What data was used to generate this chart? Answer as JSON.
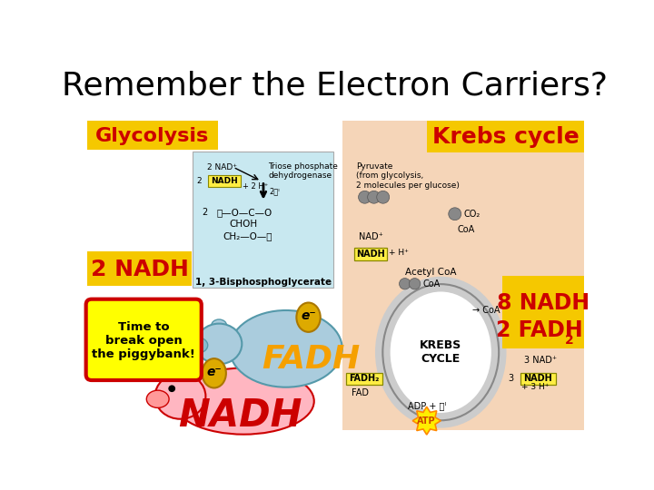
{
  "title": "Remember the Electron Carriers?",
  "title_fontsize": 26,
  "title_color": "#000000",
  "title_family": "sans-serif",
  "bg_color": "#ffffff",
  "glycolysis_label": "Glycolysis",
  "glycolysis_bg": "#f5c800",
  "glycolysis_text_color": "#cc0000",
  "glycolysis_fontsize": 16,
  "krebs_label": "Krebs cycle",
  "krebs_bg": "#f5c800",
  "krebs_text_color": "#cc0000",
  "krebs_fontsize": 18,
  "nadh_2_label": "2 NADH",
  "nadh_2_bg": "#f5c800",
  "nadh_2_text_color": "#cc0000",
  "nadh_2_fontsize": 18,
  "nadh_8_line1": "8 NADH",
  "nadh_8_line2": "2 FADH",
  "nadh_8_sub": "2",
  "nadh_8_bg": "#f5c800",
  "nadh_8_text_color": "#cc0000",
  "nadh_8_fontsize": 17,
  "piggybank_label": "Time to\nbreak open\nthe piggybank!",
  "piggybank_bg": "#ffff00",
  "piggybank_border": "#cc0000",
  "piggybank_fontsize": 9.5,
  "fadh_label": "FADH",
  "fadh_color": "#f5a000",
  "fadh_fontsize": 26,
  "nadh_big_label": "NADH",
  "nadh_big_color": "#cc0000",
  "nadh_big_fontsize": 30,
  "left_diagram_bg": "#c8e8f0",
  "left_diagram_border": "#aaaaaa",
  "right_diagram_bg": "#f5d5b8",
  "nadh_box_bg": "#ffee44",
  "nadh_box_border": "#888800",
  "fadh2_box_bg": "#ffee44",
  "fadh2_box_border": "#888800",
  "krebs_circle_color": "#ffffff",
  "krebs_circle_edge": "#bbbbbb",
  "pig1_body": "#ffb6c1",
  "pig1_edge": "#cc0000",
  "pig2_body": "#aaccdd",
  "pig2_edge": "#5599aa",
  "coin_color": "#ddaa00",
  "coin_edge": "#aa7700",
  "atp_color": "#ffee00",
  "atp_edge": "#ff8800"
}
